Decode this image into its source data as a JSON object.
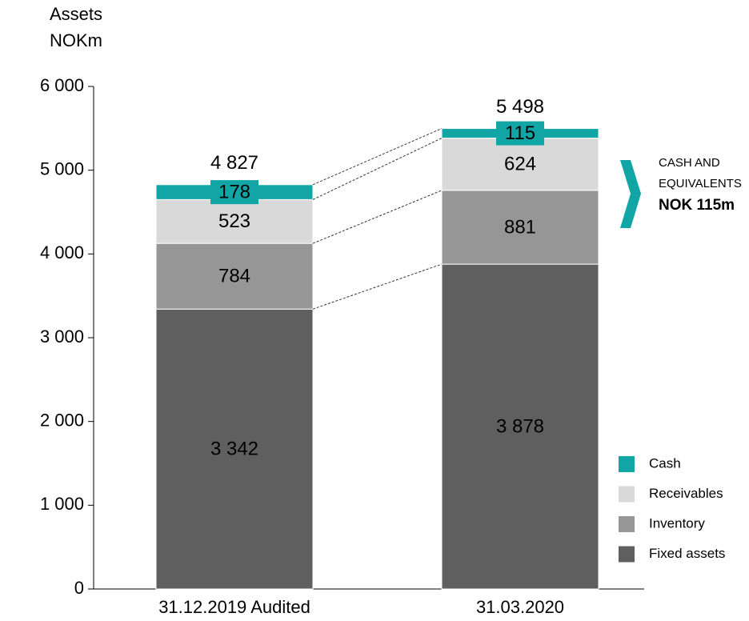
{
  "chart_data": {
    "type": "stacked_bar",
    "y_axis_label": [
      "Assets",
      "NOKm"
    ],
    "categories": [
      "31.12.2019 Audited",
      "31.03.2020"
    ],
    "series": [
      {
        "name": "Fixed assets",
        "color": "#5f5f5f",
        "values": [
          3342,
          3878
        ],
        "value_labels": [
          "3 342",
          "3 878"
        ]
      },
      {
        "name": "Inventory",
        "color": "#969696",
        "values": [
          784,
          881
        ],
        "value_labels": [
          "784",
          "881"
        ]
      },
      {
        "name": "Receivables",
        "color": "#d9d9d9",
        "values": [
          523,
          624
        ],
        "value_labels": [
          "523",
          "624"
        ]
      },
      {
        "name": "Cash",
        "color": "#12a5a5",
        "values": [
          178,
          115
        ],
        "value_labels": [
          "178",
          "115"
        ]
      }
    ],
    "totals": [
      4827,
      5498
    ],
    "total_labels": [
      "4 827",
      "5 498"
    ],
    "ylim": [
      0,
      6000
    ],
    "yticks": [
      0,
      {
        "value": 1000,
        "label": "1 000"
      },
      {
        "value": 2000,
        "label": "2 000"
      },
      {
        "value": 3000,
        "label": "3 000"
      },
      {
        "value": 4000,
        "label": "4 000"
      },
      {
        "value": 5000,
        "label": "5 000"
      },
      {
        "value": 6000,
        "label": "6 000"
      }
    ],
    "annotation": [
      "CASH AND",
      "EQUIVALENTS",
      "NOK 115m"
    ]
  }
}
